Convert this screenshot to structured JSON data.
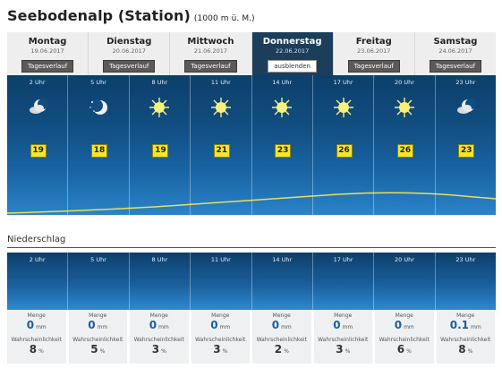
{
  "header": {
    "title": "Seebodenalp (Station)",
    "subtitle": "(1000 m ü. M.)"
  },
  "days": [
    {
      "day": "Montag",
      "date": "19.06.2017",
      "button": "Tagesverlauf",
      "active": false
    },
    {
      "day": "Dienstag",
      "date": "20.06.2017",
      "button": "Tagesverlauf",
      "active": false
    },
    {
      "day": "Mittwoch",
      "date": "21.06.2017",
      "button": "Tagesverlauf",
      "active": false
    },
    {
      "day": "Donnerstag",
      "date": "22.06.2017",
      "button": "ausblenden",
      "active": true
    },
    {
      "day": "Freitag",
      "date": "23.06.2017",
      "button": "Tagesverlauf",
      "active": false
    },
    {
      "day": "Samstag",
      "date": "24.06.2017",
      "button": "Tagesverlauf",
      "active": false
    }
  ],
  "hourly": [
    {
      "time": "2 Uhr",
      "icon": "moon-cloud-icon",
      "temp": "19"
    },
    {
      "time": "5 Uhr",
      "icon": "moon-stars-icon",
      "temp": "18"
    },
    {
      "time": "8 Uhr",
      "icon": "sun-icon",
      "temp": "19"
    },
    {
      "time": "11 Uhr",
      "icon": "sun-icon",
      "temp": "21"
    },
    {
      "time": "14 Uhr",
      "icon": "sun-icon",
      "temp": "23"
    },
    {
      "time": "17 Uhr",
      "icon": "sun-icon",
      "temp": "26"
    },
    {
      "time": "20 Uhr",
      "icon": "sun-icon",
      "temp": "26"
    },
    {
      "time": "23 Uhr",
      "icon": "moon-cloud-icon",
      "temp": "23"
    }
  ],
  "precip": {
    "section_label": "Niederschlag",
    "amount_label": "Menge",
    "prob_label": "Wahrscheinlichkeit",
    "amount_unit": "mm",
    "prob_unit": "%",
    "items": [
      {
        "time": "2 Uhr",
        "amount": "0",
        "prob": "8"
      },
      {
        "time": "5 Uhr",
        "amount": "0",
        "prob": "5"
      },
      {
        "time": "8 Uhr",
        "amount": "0",
        "prob": "3"
      },
      {
        "time": "11 Uhr",
        "amount": "0",
        "prob": "3"
      },
      {
        "time": "14 Uhr",
        "amount": "0",
        "prob": "2"
      },
      {
        "time": "17 Uhr",
        "amount": "0",
        "prob": "3"
      },
      {
        "time": "20 Uhr",
        "amount": "0",
        "prob": "6"
      },
      {
        "time": "23 Uhr",
        "amount": "0.1",
        "prob": "8"
      }
    ]
  },
  "colors": {
    "panel_top": "#0c3f6b",
    "panel_bottom": "#2b83c8",
    "temp_badge": "#f5e52c",
    "curve": "#e9df5a",
    "active_tab": "#1d3e5a"
  }
}
